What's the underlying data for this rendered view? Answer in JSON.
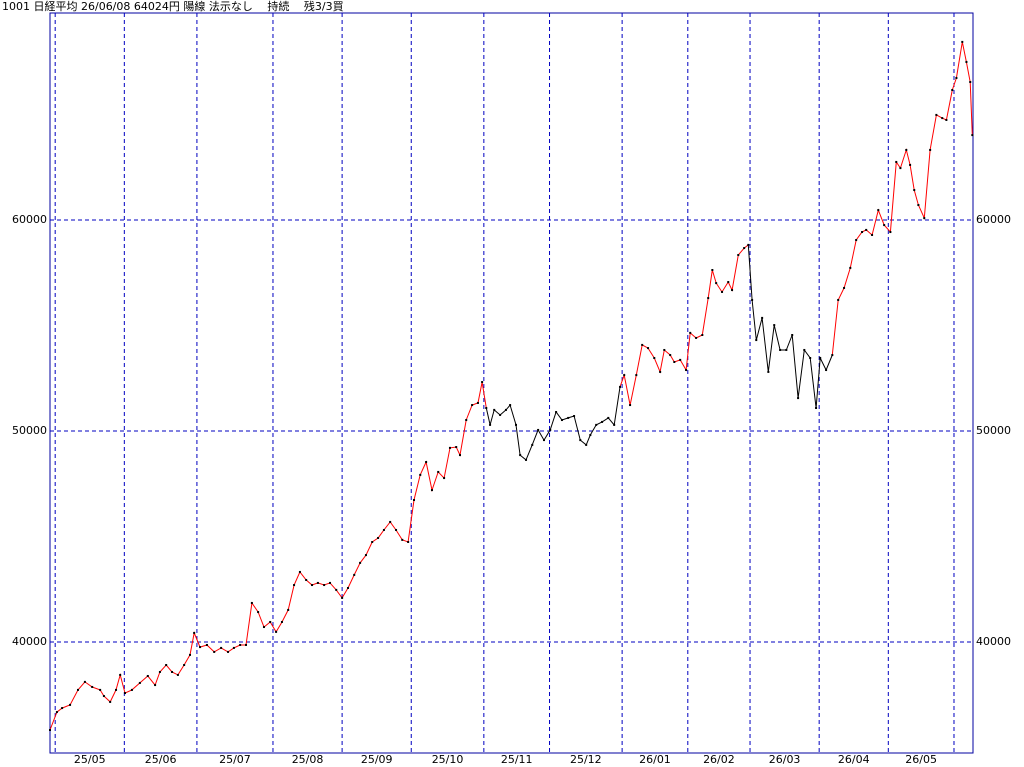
{
  "chart_data": {
    "type": "line",
    "title": "1001 日経平均 26/06/08 64024円 陽線 法示なし　 持続　 残3/3買",
    "x": [
      0,
      2,
      3.5,
      5.8,
      8.1,
      10.1,
      12.2,
      14.5,
      15.6,
      17.4,
      19.1,
      20.3,
      21.7,
      23.7,
      26,
      28.3,
      30.4,
      31.8,
      33.6,
      35.3,
      37,
      38.8,
      40.5,
      41.7,
      43.4,
      45.4,
      47.5,
      49.5,
      51.5,
      53.2,
      55,
      56.7,
      58.4,
      60.2,
      61.9,
      63.7,
      65.4,
      67.1,
      68.9,
      70.6,
      72.3,
      74.1,
      75.8,
      77.5,
      79.3,
      81,
      82.8,
      84.5,
      86.2,
      88,
      89.7,
      91.4,
      93.2,
      94.9,
      96.6,
      98.4,
      100.1,
      101.9,
      103.6,
      105.3,
      107.1,
      108.8,
      110.5,
      112.3,
      114,
      115.7,
      117.5,
      118.6,
      120.4,
      122.1,
      123.8,
      125,
      126.2,
      127.3,
      128.5,
      130.2,
      131.9,
      133.1,
      134.8,
      136,
      137.7,
      139.5,
      141.2,
      142.9,
      144.7,
      146.4,
      148.1,
      149.9,
      151.6,
      153.4,
      155.1,
      156.3,
      158,
      159.7,
      161.5,
      163.2,
      164.9,
      166.1,
      167.8,
      169.6,
      171.3,
      173,
      174.8,
      176.5,
      177.7,
      179.4,
      180.6,
      182.3,
      184,
      185.2,
      186.9,
      188.7,
      190.4,
      191.6,
      192.7,
      194.4,
      196.2,
      197.3,
      199.1,
      200.8,
      202,
      203.1,
      204.3,
      206,
      207.8,
      209.5,
      211.2,
      213,
      214.7,
      216.4,
      218.2,
      219.9,
      221.6,
      222.8,
      224.5,
      226.3,
      228,
      229.7,
      231.5,
      233.2,
      234.9,
      236.1,
      237.8,
      239.6,
      241.3,
      243.1,
      244.8,
      246,
      247.7,
      248.8,
      250,
      251.2,
      252.9,
      254.6,
      256.4,
      258.1,
      259.3,
      261,
      262.2,
      263.9,
      265.1,
      266.2,
      266.8
    ],
    "values": [
      35830,
      36680,
      36870,
      37020,
      37730,
      38110,
      37870,
      37730,
      37440,
      37160,
      37730,
      38440,
      37580,
      37730,
      38060,
      38390,
      37960,
      38580,
      38910,
      38580,
      38440,
      38910,
      39390,
      40430,
      39760,
      39860,
      39530,
      39720,
      39530,
      39720,
      39860,
      39860,
      41850,
      41420,
      40710,
      40950,
      40480,
      40950,
      41520,
      42700,
      43320,
      42940,
      42700,
      42800,
      42700,
      42800,
      42470,
      42090,
      42560,
      43180,
      43750,
      44120,
      44740,
      44930,
      45310,
      45690,
      45310,
      44840,
      44740,
      46730,
      47920,
      48530,
      47200,
      48060,
      47770,
      49200,
      49240,
      48860,
      50520,
      51230,
      51330,
      52320,
      51090,
      50290,
      51000,
      50760,
      51000,
      51230,
      50290,
      48860,
      48630,
      49340,
      50050,
      49570,
      50050,
      50900,
      50520,
      50620,
      50710,
      49570,
      49340,
      49810,
      50290,
      50430,
      50620,
      50290,
      52090,
      52650,
      51230,
      52650,
      54080,
      53930,
      53460,
      52800,
      53840,
      53600,
      53270,
      53370,
      52890,
      54650,
      54410,
      54550,
      56300,
      57630,
      57010,
      56590,
      57060,
      56680,
      58340,
      58670,
      58820,
      56210,
      54310,
      55360,
      52800,
      55020,
      53840,
      53840,
      54550,
      51560,
      53840,
      53460,
      51090,
      53460,
      52890,
      53600,
      56210,
      56780,
      57730,
      59050,
      59430,
      59530,
      59290,
      60470,
      59760,
      59430,
      62750,
      62460,
      63320,
      62610,
      61420,
      60710,
      60090,
      63320,
      64980,
      64830,
      64740,
      66160,
      66730,
      68440,
      67490,
      66540,
      64024
    ],
    "line_colors": [
      "red",
      "red",
      "red",
      "red",
      "red",
      "red",
      "red",
      "red",
      "red",
      "red",
      "red",
      "red",
      "red",
      "red",
      "red",
      "red",
      "red",
      "red",
      "red",
      "red",
      "red",
      "red",
      "red",
      "red",
      "red",
      "red",
      "red",
      "red",
      "red",
      "red",
      "red",
      "red",
      "red",
      "red",
      "red",
      "red",
      "red",
      "red",
      "red",
      "red",
      "red",
      "red",
      "red",
      "red",
      "red",
      "red",
      "red",
      "red",
      "red",
      "red",
      "red",
      "red",
      "red",
      "red",
      "red",
      "red",
      "red",
      "red",
      "red",
      "red",
      "red",
      "red",
      "red",
      "red",
      "red",
      "red",
      "red",
      "red",
      "red",
      "red",
      "red",
      "red",
      "red",
      "black",
      "black",
      "black",
      "black",
      "black",
      "black",
      "black",
      "black",
      "black",
      "black",
      "black",
      "black",
      "black",
      "black",
      "black",
      "black",
      "black",
      "black",
      "black",
      "black",
      "black",
      "black",
      "black",
      "black",
      "red",
      "red",
      "red",
      "red",
      "red",
      "red",
      "red",
      "red",
      "red",
      "red",
      "red",
      "red",
      "red",
      "red",
      "red",
      "red",
      "red",
      "red",
      "red",
      "red",
      "red",
      "red",
      "red",
      "red",
      "black",
      "black",
      "black",
      "black",
      "black",
      "black",
      "black",
      "black",
      "black",
      "black",
      "black",
      "black",
      "black",
      "black",
      "black",
      "red",
      "red",
      "red",
      "red",
      "red",
      "red",
      "red",
      "red",
      "red",
      "red",
      "red",
      "red",
      "red",
      "red",
      "red",
      "red",
      "red",
      "red",
      "red",
      "red",
      "red",
      "red",
      "red",
      "red",
      "red",
      "red",
      "red"
    ],
    "marker_color": "#000000",
    "xlim": [
      0,
      267
    ],
    "x_grid": [
      1.5,
      21.5,
      42.5,
      64.5,
      84.5,
      104.5,
      125.5,
      144.5,
      165.5,
      184.5,
      202.5,
      222.5,
      242.5,
      261.5
    ],
    "x_labels": [
      "25/05",
      "25/06",
      "25/07",
      "25/08",
      "25/09",
      "25/10",
      "25/11",
      "25/12",
      "26/01",
      "26/02",
      "26/03",
      "26/04",
      "26/05"
    ],
    "ylim": [
      34740,
      69810
    ],
    "yticks": [
      40000,
      50000,
      60000
    ],
    "grid": true
  }
}
